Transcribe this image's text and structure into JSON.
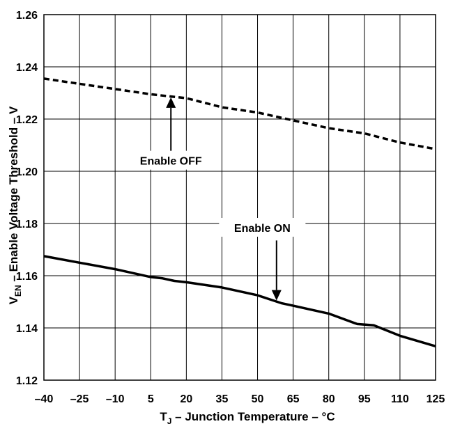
{
  "chart_data": {
    "type": "line",
    "xlabel": "T J – Junction Temperature – °C",
    "xlabel_main": "T",
    "xlabel_sub": "J",
    "xlabel_rest": " – Junction Temperature – °C",
    "ylabel_main": "V",
    "ylabel_sub": "EN",
    "ylabel_rest": " – Enable Voltage Threshold – V",
    "xlim": [
      -40,
      125
    ],
    "ylim": [
      1.12,
      1.26
    ],
    "xticks": [
      -40,
      -25,
      -10,
      5,
      20,
      35,
      50,
      65,
      80,
      95,
      110,
      125
    ],
    "xtick_labels": [
      "–40",
      "–25",
      "–10",
      "5",
      "20",
      "35",
      "50",
      "65",
      "80",
      "95",
      "110",
      "125"
    ],
    "yticks": [
      1.12,
      1.14,
      1.16,
      1.18,
      1.2,
      1.22,
      1.24,
      1.26
    ],
    "ytick_labels": [
      "1.12",
      "1.14",
      "1.16",
      "1.18",
      "1.20",
      "1.22",
      "1.24",
      "1.26"
    ],
    "grid": true,
    "series": [
      {
        "name": "Enable OFF",
        "style": "dashed",
        "x": [
          -40,
          -25,
          -10,
          5,
          20,
          35,
          50,
          65,
          80,
          95,
          110,
          125
        ],
        "y": [
          1.2355,
          1.2335,
          1.2315,
          1.2295,
          1.228,
          1.2245,
          1.2225,
          1.2195,
          1.2165,
          1.2145,
          1.211,
          1.2085
        ]
      },
      {
        "name": "Enable ON",
        "style": "solid",
        "x": [
          -40,
          -25,
          -10,
          5,
          10,
          15,
          20,
          35,
          50,
          60,
          65,
          80,
          92,
          99,
          110,
          125
        ],
        "y": [
          1.1675,
          1.165,
          1.1625,
          1.1595,
          1.159,
          1.158,
          1.1575,
          1.1555,
          1.1525,
          1.1495,
          1.1485,
          1.1455,
          1.1415,
          1.141,
          1.137,
          1.133
        ]
      }
    ],
    "annotations": [
      {
        "text": "Enable OFF",
        "arrow_x": 13.5,
        "arrow_from_y": 1.2065,
        "arrow_to_y": 1.2283,
        "label_x": 13.5,
        "label_y": 1.2025
      },
      {
        "text": "Enable ON",
        "arrow_x": 58,
        "arrow_from_y": 1.1735,
        "arrow_to_y": 1.1505,
        "label_x": 52,
        "label_y": 1.1768
      }
    ],
    "colors": {
      "lines": "#000000",
      "grid": "#000000",
      "background": "#ffffff"
    }
  }
}
